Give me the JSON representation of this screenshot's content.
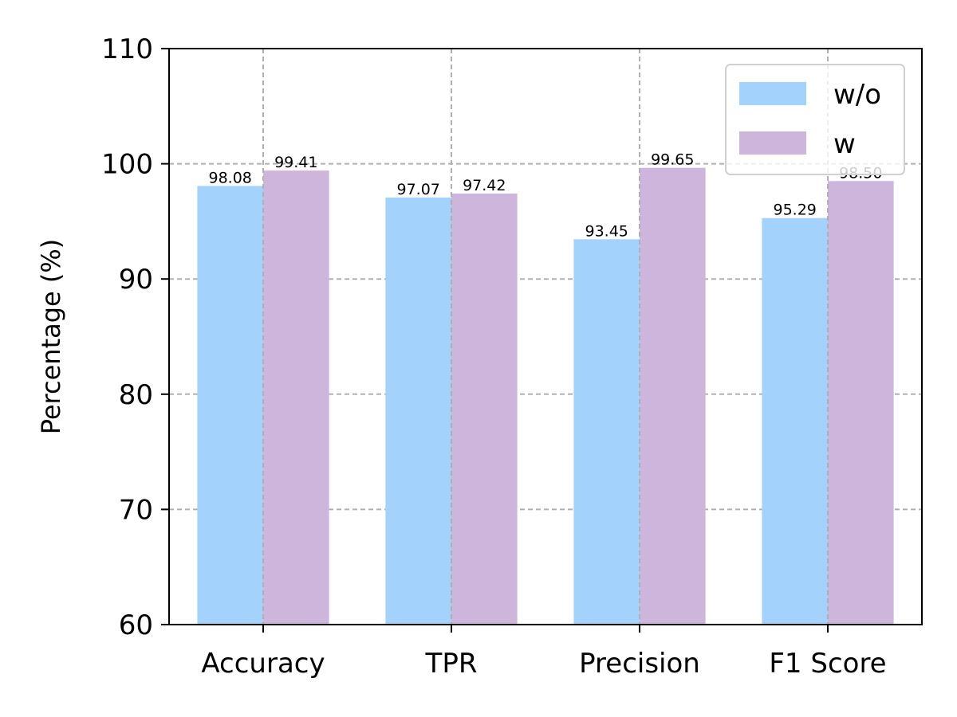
{
  "chart_data": {
    "type": "bar",
    "title": "",
    "xlabel": "",
    "ylabel": "Percentage (%)",
    "categories": [
      "Accuracy",
      "TPR",
      "Precision",
      "F1 Score"
    ],
    "series": [
      {
        "name": "w/o",
        "color": "#a3d2fd",
        "values": [
          98.08,
          97.07,
          93.45,
          95.29
        ],
        "labels": [
          "98.08",
          "97.07",
          "93.45",
          "95.29"
        ]
      },
      {
        "name": "w",
        "color": "#cdb5dc",
        "values": [
          99.41,
          97.42,
          99.65,
          98.5
        ],
        "labels": [
          "99.41",
          "97.42",
          "99.65",
          "98.50"
        ]
      }
    ],
    "ylim": [
      60,
      110
    ],
    "yticks": [
      60,
      70,
      80,
      90,
      100,
      110
    ],
    "grid": true,
    "legend": "top-right"
  }
}
